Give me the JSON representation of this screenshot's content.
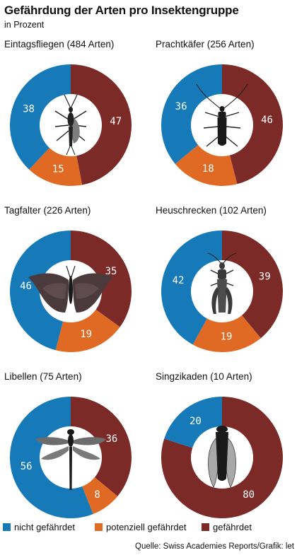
{
  "title": "Gefährdung der Arten pro Insektengruppe",
  "subtitle": "in Prozent",
  "colors": {
    "nicht_gefaehrdet": "#1679b8",
    "potenziell_gefaehrdet": "#e06a24",
    "gefaehrdet": "#7c2a28"
  },
  "legend": [
    {
      "label": "nicht gefährdet",
      "color": "#1679b8"
    },
    {
      "label": "potenziell gefährdet",
      "color": "#e06a24"
    },
    {
      "label": "gefährdet",
      "color": "#7c2a28"
    }
  ],
  "source": "Quelle: Swiss Academies Reports/Grafik: let",
  "chart_data": [
    {
      "type": "pie",
      "title": "Eintagsfliegen (484 Arten)",
      "icon": "mayfly-icon",
      "slices": [
        {
          "category": "gefährdet",
          "value": 47
        },
        {
          "category": "potenziell gefährdet",
          "value": 15
        },
        {
          "category": "nicht gefährdet",
          "value": 38
        }
      ]
    },
    {
      "type": "pie",
      "title": "Prachtkäfer (256 Arten)",
      "icon": "jewel-beetle-icon",
      "slices": [
        {
          "category": "gefährdet",
          "value": 46
        },
        {
          "category": "potenziell gefährdet",
          "value": 18
        },
        {
          "category": "nicht gefährdet",
          "value": 36
        }
      ]
    },
    {
      "type": "pie",
      "title": "Tagfalter (226 Arten)",
      "icon": "butterfly-icon",
      "slices": [
        {
          "category": "gefährdet",
          "value": 35
        },
        {
          "category": "potenziell gefährdet",
          "value": 19
        },
        {
          "category": "nicht gefährdet",
          "value": 46
        }
      ]
    },
    {
      "type": "pie",
      "title": "Heuschrecken (102 Arten)",
      "icon": "grasshopper-icon",
      "slices": [
        {
          "category": "gefährdet",
          "value": 39
        },
        {
          "category": "potenziell gefährdet",
          "value": 19
        },
        {
          "category": "nicht gefährdet",
          "value": 42
        }
      ]
    },
    {
      "type": "pie",
      "title": "Libellen (75 Arten)",
      "icon": "dragonfly-icon",
      "slices": [
        {
          "category": "gefährdet",
          "value": 36
        },
        {
          "category": "potenziell gefährdet",
          "value": 8
        },
        {
          "category": "nicht gefährdet",
          "value": 56
        }
      ]
    },
    {
      "type": "pie",
      "title": "Singzikaden (10 Arten)",
      "icon": "cicada-icon",
      "slices": [
        {
          "category": "gefährdet",
          "value": 80
        },
        {
          "category": "potenziell gefährdet",
          "value": 0
        },
        {
          "category": "nicht gefährdet",
          "value": 20
        }
      ]
    }
  ]
}
